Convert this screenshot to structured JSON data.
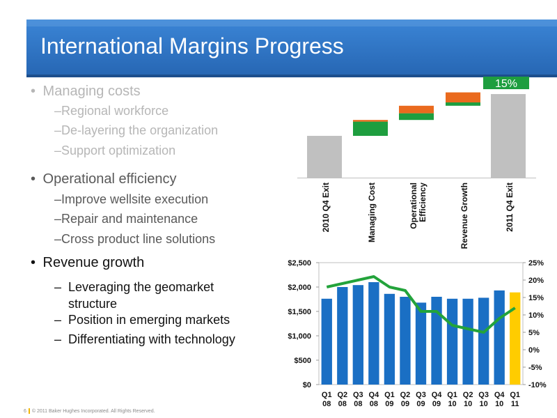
{
  "title": "International Margins Progress",
  "bullets": [
    {
      "text": "Managing costs",
      "level": 1,
      "tone": "dim"
    },
    {
      "text": "Regional workforce",
      "level": 2,
      "tone": "dim"
    },
    {
      "text": "De-layering the organization",
      "level": 2,
      "tone": "dim"
    },
    {
      "text": "Support optimization",
      "level": 2,
      "tone": "dim"
    },
    {
      "text": "Operational efficiency",
      "level": 1,
      "tone": "mid"
    },
    {
      "text": "Improve wellsite execution",
      "level": 2,
      "tone": "mid"
    },
    {
      "text": "Repair and maintenance",
      "level": 2,
      "tone": "mid"
    },
    {
      "text": "Cross product line solutions",
      "level": 2,
      "tone": "mid"
    },
    {
      "text": "Revenue growth",
      "level": 1,
      "tone": "dark"
    },
    {
      "text": "Leveraging the geomarket structure",
      "level": 3,
      "tone": "dark"
    },
    {
      "text": "Position in emerging markets",
      "level": 3,
      "tone": "dark"
    },
    {
      "text": "Differentiating with technology",
      "level": 3,
      "tone": "dark"
    }
  ],
  "footer": {
    "page": "6",
    "text": "© 2011 Baker Hughes Incorporated. All Rights Reserved."
  },
  "colors": {
    "blue": "#1a6fc4",
    "green": "#1e9e3f",
    "orange": "#ea6a1e",
    "gray": "#c0c0c0",
    "yellow": "#ffcc00",
    "line": "#23a33b"
  },
  "chart_data": [
    {
      "type": "bar",
      "subtype": "waterfall",
      "categories": [
        "2010 Q4 Exit",
        "Managing Cost",
        "Operational Efficiency",
        "Revenue Growth",
        "2011 Q4 Exit"
      ],
      "annotation": "15%",
      "bars": [
        {
          "kind": "total",
          "color": "gray",
          "base": 0,
          "height": 0.5
        },
        {
          "kind": "step",
          "base": 0.5,
          "segments": [
            {
              "color": "green",
              "value": 0.17
            },
            {
              "color": "orange",
              "value": 0.02
            }
          ]
        },
        {
          "kind": "step",
          "base": 0.69,
          "segments": [
            {
              "color": "green",
              "value": 0.08
            },
            {
              "color": "orange",
              "value": 0.09
            }
          ]
        },
        {
          "kind": "step",
          "base": 0.86,
          "segments": [
            {
              "color": "green",
              "value": 0.04
            },
            {
              "color": "orange",
              "value": 0.12
            }
          ]
        },
        {
          "kind": "total",
          "color": "gray",
          "base": 0,
          "height": 1.0
        }
      ]
    },
    {
      "type": "bar",
      "combo_line": true,
      "categories": [
        [
          "Q1",
          "08"
        ],
        [
          "Q2",
          "08"
        ],
        [
          "Q3",
          "08"
        ],
        [
          "Q4",
          "08"
        ],
        [
          "Q1",
          "09"
        ],
        [
          "Q2",
          "09"
        ],
        [
          "Q3",
          "09"
        ],
        [
          "Q4",
          "09"
        ],
        [
          "Q1",
          "10"
        ],
        [
          "Q2",
          "10"
        ],
        [
          "Q3",
          "10"
        ],
        [
          "Q4",
          "10"
        ],
        [
          "Q1",
          "11"
        ]
      ],
      "bar_values": [
        1760,
        2000,
        2040,
        2100,
        1860,
        1800,
        1680,
        1800,
        1760,
        1760,
        1780,
        1930,
        1890
      ],
      "bar_colors": [
        "blue",
        "blue",
        "blue",
        "blue",
        "blue",
        "blue",
        "blue",
        "blue",
        "blue",
        "blue",
        "blue",
        "blue",
        "yellow"
      ],
      "line_values": [
        18,
        19,
        20,
        21,
        18,
        17,
        11,
        11,
        7,
        6,
        5,
        9,
        12
      ],
      "y_left": {
        "min": 0,
        "max": 2500,
        "ticks": [
          "$0",
          "$500",
          "$1,000",
          "$1,500",
          "$2,000",
          "$2,500"
        ]
      },
      "y_right": {
        "min": -10,
        "max": 25,
        "ticks": [
          "-10%",
          "-5%",
          "0%",
          "5%",
          "10%",
          "15%",
          "20%",
          "25%"
        ]
      }
    }
  ]
}
